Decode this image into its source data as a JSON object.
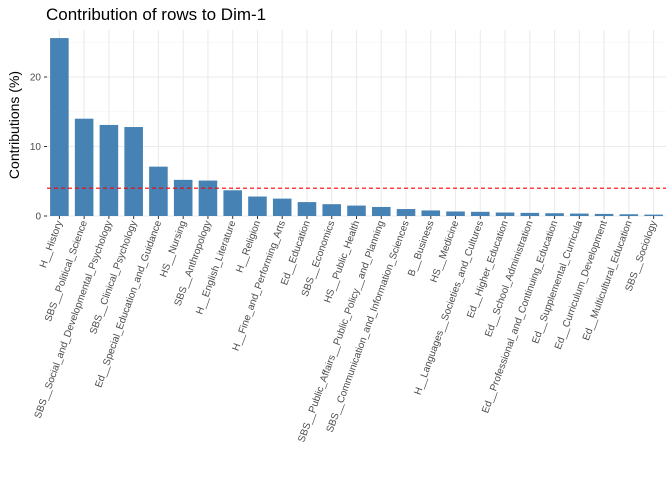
{
  "chart_data": {
    "type": "bar",
    "title": "Contribution of rows to Dim-1",
    "xlabel": "",
    "ylabel": "Contributions (%)",
    "ylim": [
      0,
      27
    ],
    "yticks": [
      0,
      10,
      20
    ],
    "grid": true,
    "reference_line": {
      "value": 4.0,
      "color": "#ff0000",
      "style": "dashed"
    },
    "bar_color": "#4682b4",
    "categories": [
      "H__History",
      "SBS__Political_Science",
      "SBS__Social_and_Developmental_Psychology",
      "SBS__Clinical_Psychology",
      "Ed__Special_Education_and_Guidance",
      "HS__Nursing",
      "SBS__Anthropology",
      "H__English_Literature",
      "H__Religion",
      "H__Fine_and_Performing_Arts",
      "Ed__Education",
      "SBS__Economics",
      "HS__Public_Health",
      "SBS__Public_Affairs__Public_Policy__and_Planning",
      "SBS__Communication_and_Information_Sciences",
      "B__Business",
      "HS__Medicine",
      "H__Languages__Societies_and_Cultures",
      "Ed__Higher_Education",
      "Ed__School_Administration",
      "Ed__Professional_and_Continuing_Education",
      "Ed__Supplemental_Curricula",
      "Ed__Curriculum_Development",
      "Ed__Multicultural_Education",
      "SBS__Sociology"
    ],
    "values": [
      25.6,
      14.0,
      13.1,
      12.8,
      7.1,
      5.2,
      5.1,
      3.7,
      2.8,
      2.5,
      2.0,
      1.7,
      1.5,
      1.3,
      1.0,
      0.8,
      0.65,
      0.6,
      0.5,
      0.45,
      0.4,
      0.35,
      0.3,
      0.25,
      0.2
    ]
  }
}
